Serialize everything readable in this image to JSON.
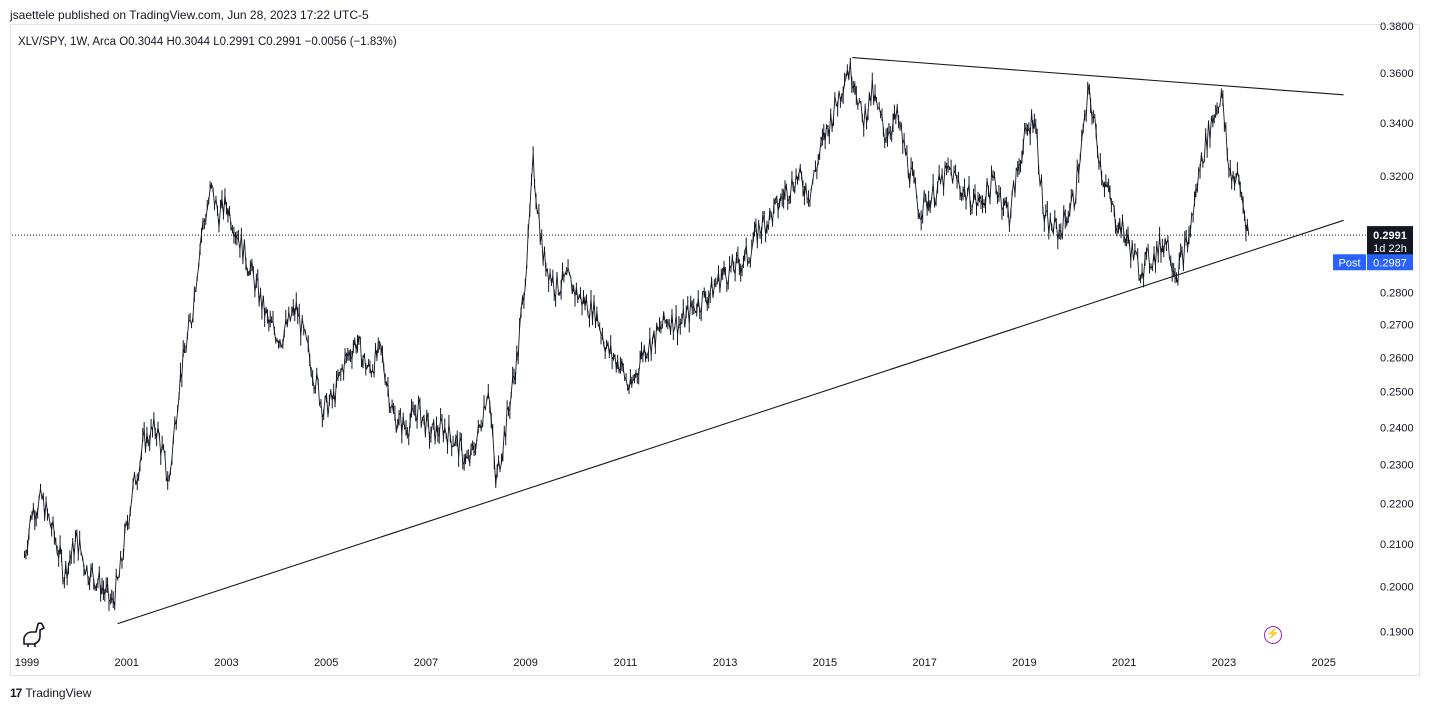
{
  "header": {
    "published": "jsaettele published on TradingView.com, Jun 28, 2023 17:22 UTC-5",
    "ohlc": "XLV/SPY, 1W, Arca  O0.3044  H0.3044  L0.2991  C0.2991  −0.0056 (−1.83%)"
  },
  "footer": {
    "logo_mark": "17",
    "brand": "TradingView"
  },
  "icons": {
    "bottom_left": "dino-icon",
    "bottom_right": "lightning-icon"
  },
  "colors": {
    "candles": "#131722",
    "price_line": "#131722",
    "post_badge": "#2962ff",
    "last_badge": "#131722",
    "lightning": "#9c27b0"
  },
  "chart_data": {
    "type": "line",
    "title": "XLV/SPY, 1W, Arca",
    "scale": "log",
    "xlim": [
      1998.7,
      2025.85
    ],
    "ylim": [
      0.186,
      0.38
    ],
    "x_ticks": [
      "1999",
      "2001",
      "2003",
      "2005",
      "2007",
      "2009",
      "2011",
      "2013",
      "2015",
      "2017",
      "2019",
      "2021",
      "2023",
      "2025"
    ],
    "y_ticks": [
      "0.3800",
      "0.3600",
      "0.3400",
      "0.3200",
      "0.2800",
      "0.2700",
      "0.2600",
      "0.2500",
      "0.2400",
      "0.2300",
      "0.2200",
      "0.2100",
      "0.2000",
      "0.1900"
    ],
    "series": [
      {
        "values_x": [
          1998.95,
          1999.1,
          1999.3,
          1999.55,
          1999.75,
          2000.0,
          2000.2,
          2000.45,
          2000.7,
          2000.85,
          2001.1,
          2001.35,
          2001.6,
          2001.85,
          2002.05,
          2002.3,
          2002.5,
          2002.7,
          2002.85,
          2003.0,
          2003.3,
          2003.6,
          2003.85,
          2004.1,
          2004.4,
          2004.7,
          2004.95,
          2005.15,
          2005.35,
          2005.6,
          2005.85,
          2006.1,
          2006.35,
          2006.6,
          2006.85,
          2007.1,
          2007.35,
          2007.6,
          2007.85,
          2008.05,
          2008.25,
          2008.4,
          2008.6,
          2008.85,
          2009.05,
          2009.15,
          2009.35,
          2009.6,
          2009.85,
          2010.1,
          2010.4,
          2010.65,
          2010.9,
          2011.1,
          2011.35,
          2011.6,
          2011.85,
          2012.1,
          2012.4,
          2012.7,
          2012.95,
          2013.2,
          2013.45,
          2013.7,
          2013.95,
          2014.2,
          2014.45,
          2014.7,
          2014.95,
          2015.2,
          2015.45,
          2015.6,
          2015.75,
          2015.95,
          2016.2,
          2016.45,
          2016.7,
          2016.9,
          2017.2,
          2017.5,
          2017.8,
          2018.1,
          2018.4,
          2018.7,
          2018.95,
          2019.2,
          2019.4,
          2019.7,
          2020.0,
          2020.3,
          2020.55,
          2020.8,
          2021.05,
          2021.3,
          2021.6,
          2021.85,
          2022.05,
          2022.3,
          2022.55,
          2022.75,
          2022.95,
          2023.1,
          2023.3,
          2023.5
        ],
        "values_y": [
          0.207,
          0.218,
          0.221,
          0.212,
          0.203,
          0.211,
          0.204,
          0.201,
          0.196,
          0.202,
          0.222,
          0.236,
          0.24,
          0.225,
          0.252,
          0.272,
          0.3,
          0.315,
          0.306,
          0.31,
          0.296,
          0.282,
          0.27,
          0.266,
          0.275,
          0.258,
          0.245,
          0.248,
          0.258,
          0.265,
          0.256,
          0.262,
          0.243,
          0.24,
          0.245,
          0.238,
          0.24,
          0.236,
          0.23,
          0.238,
          0.252,
          0.225,
          0.24,
          0.262,
          0.296,
          0.324,
          0.292,
          0.282,
          0.284,
          0.278,
          0.274,
          0.262,
          0.258,
          0.25,
          0.262,
          0.266,
          0.272,
          0.27,
          0.276,
          0.28,
          0.286,
          0.288,
          0.292,
          0.302,
          0.306,
          0.314,
          0.32,
          0.314,
          0.332,
          0.346,
          0.362,
          0.358,
          0.34,
          0.352,
          0.336,
          0.342,
          0.322,
          0.308,
          0.314,
          0.322,
          0.314,
          0.31,
          0.318,
          0.306,
          0.33,
          0.344,
          0.304,
          0.3,
          0.312,
          0.352,
          0.322,
          0.306,
          0.298,
          0.288,
          0.292,
          0.298,
          0.286,
          0.298,
          0.326,
          0.34,
          0.352,
          0.322,
          0.318,
          0.2991
        ]
      }
    ],
    "trendlines": [
      {
        "name": "upper",
        "x": [
          2015.55,
          2025.4
        ],
        "y": [
          0.3665,
          0.3512
        ]
      },
      {
        "name": "lower",
        "x": [
          2000.82,
          2025.4
        ],
        "y": [
          0.1917,
          0.3042
        ]
      }
    ],
    "last_price_line": 0.2991,
    "badges": {
      "last_value": "0.2991",
      "countdown": "1d 22h",
      "post_label": "Post",
      "post_value": "0.2987"
    }
  }
}
